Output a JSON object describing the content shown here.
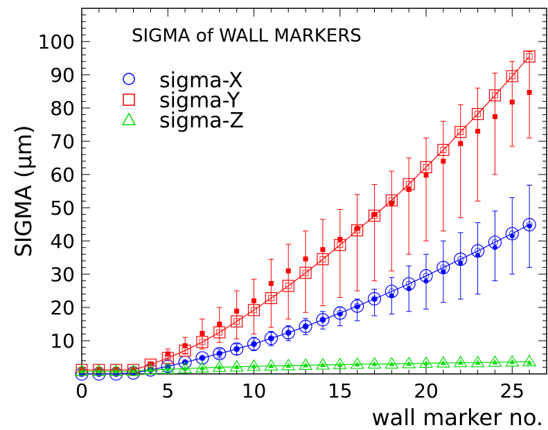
{
  "chart_data": {
    "type": "scatter",
    "title": "SIGMA of WALL MARKERS",
    "xlabel": "wall marker no.",
    "ylabel": "SIGMA (μm)",
    "xlim": [
      0,
      27
    ],
    "ylim": [
      0,
      110
    ],
    "xticks": [
      0,
      5,
      10,
      15,
      20,
      25
    ],
    "yticks": [
      10,
      20,
      30,
      40,
      50,
      60,
      70,
      80,
      90,
      100
    ],
    "legend_position": "top-left",
    "grid": false,
    "series": [
      {
        "name": "sigma-X",
        "color": "#0000ff",
        "marker": "circle",
        "x": [
          0,
          1,
          2,
          3,
          4,
          5,
          6,
          7,
          8,
          9,
          10,
          11,
          12,
          13,
          14,
          15,
          16,
          17,
          18,
          19,
          20,
          21,
          22,
          23,
          24,
          25,
          26
        ],
        "fit": [
          0,
          0,
          0,
          0.3,
          1.2,
          2.3,
          3.5,
          4.8,
          6.1,
          7.5,
          9.0,
          10.7,
          12.4,
          14.3,
          16.3,
          18.3,
          20.4,
          22.6,
          24.8,
          27.1,
          29.5,
          32.0,
          34.5,
          37.0,
          39.6,
          42.2,
          44.9
        ],
        "measured": [
          0,
          0,
          0,
          0.3,
          1.2,
          2.2,
          3.5,
          4.8,
          6.2,
          7.5,
          9.0,
          10.7,
          12.4,
          14.3,
          16.3,
          18.0,
          20.2,
          22.5,
          23.5,
          25.6,
          27.9,
          30.8,
          33.4,
          35.7,
          38.0,
          41.5,
          44.5
        ],
        "err_low": [
          0,
          0,
          0,
          0.3,
          1.2,
          2.2,
          3.5,
          4.8,
          4.8,
          5.8,
          7.0,
          8.5,
          10.0,
          11.8,
          13.5,
          14.5,
          16.0,
          17.5,
          18.0,
          18.8,
          19.5,
          21.5,
          22.5,
          24.0,
          28.0,
          30.0,
          32.0
        ],
        "err_high": [
          0,
          0,
          0,
          0.3,
          1.2,
          2.2,
          3.5,
          4.8,
          7.5,
          9.0,
          11.0,
          12.8,
          14.5,
          16.7,
          18.8,
          20.2,
          22.5,
          25.5,
          29.0,
          32.5,
          36.0,
          40.0,
          42.5,
          45.5,
          49.0,
          53.0,
          56.8
        ]
      },
      {
        "name": "sigma-Y",
        "color": "#ff0000",
        "marker": "square",
        "x": [
          0,
          1,
          2,
          3,
          4,
          5,
          6,
          7,
          8,
          9,
          10,
          11,
          12,
          13,
          14,
          15,
          16,
          17,
          18,
          19,
          20,
          21,
          22,
          23,
          24,
          25,
          26
        ],
        "fit": [
          1.2,
          1.2,
          1.2,
          1.2,
          2.8,
          4.8,
          7.0,
          9.6,
          12.5,
          15.8,
          19.2,
          22.8,
          26.5,
          30.4,
          34.5,
          38.8,
          43.2,
          47.6,
          52.2,
          57.1,
          62.2,
          67.4,
          72.8,
          78.2,
          83.8,
          89.6,
          95.5
        ],
        "measured": [
          1.2,
          1.2,
          1.2,
          1.2,
          3.0,
          6.0,
          8.5,
          12.2,
          15.0,
          18.9,
          22.0,
          27.2,
          31.0,
          34.6,
          37.4,
          40.5,
          43.8,
          48.0,
          51.4,
          55.5,
          59.8,
          64.0,
          69.3,
          73.0,
          77.4,
          81.8,
          84.7
        ],
        "err_low": [
          1.2,
          1.2,
          1.2,
          1.2,
          3.0,
          4.5,
          6.0,
          7.5,
          9.5,
          10.5,
          12.0,
          14.0,
          16.5,
          18.5,
          20.5,
          23.0,
          25.0,
          28.0,
          31.0,
          36.0,
          40.0,
          43.0,
          47.0,
          52.0,
          60.0,
          68.5,
          71.0
        ],
        "err_high": [
          1.2,
          1.2,
          1.2,
          1.2,
          3.0,
          7.5,
          11.0,
          16.5,
          20.0,
          25.0,
          28.5,
          34.5,
          39.0,
          43.0,
          46.5,
          49.5,
          54.0,
          57.0,
          61.0,
          65.0,
          71.0,
          76.0,
          81.0,
          86.0,
          90.5,
          94.0,
          97.0
        ]
      },
      {
        "name": "sigma-Z",
        "color": "#00dd00",
        "marker": "triangle",
        "x": [
          0,
          1,
          2,
          3,
          4,
          5,
          6,
          7,
          8,
          9,
          10,
          11,
          12,
          13,
          14,
          15,
          16,
          17,
          18,
          19,
          20,
          21,
          22,
          23,
          24,
          25,
          26
        ],
        "fit": [
          0.8,
          0.8,
          0.8,
          0.8,
          1.2,
          1.4,
          1.6,
          1.8,
          2.0,
          2.1,
          2.3,
          2.4,
          2.5,
          2.6,
          2.7,
          2.8,
          2.9,
          3.0,
          3.0,
          3.1,
          3.2,
          3.3,
          3.4,
          3.4,
          3.5,
          3.6,
          3.7
        ],
        "measured": [
          0.8,
          0.8,
          0.8,
          0.8,
          1.2,
          1.4,
          1.6,
          1.8,
          2.0,
          2.1,
          2.3,
          2.4,
          2.5,
          2.6,
          2.7,
          2.8,
          2.9,
          3.0,
          3.0,
          3.1,
          3.2,
          3.3,
          3.4,
          3.4,
          3.5,
          3.6,
          3.4
        ]
      }
    ]
  }
}
